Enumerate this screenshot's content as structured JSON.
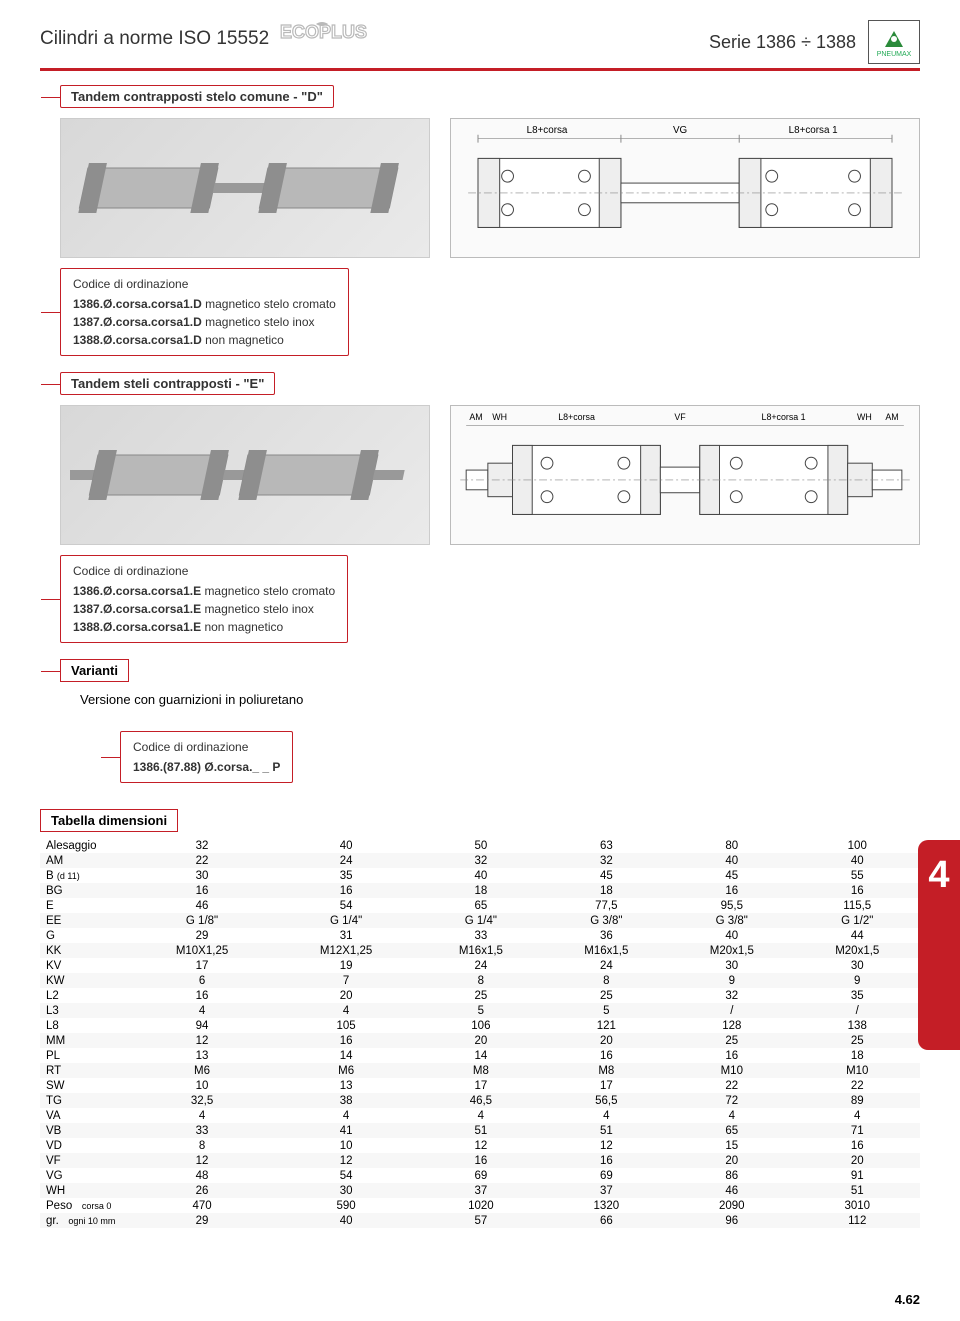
{
  "header": {
    "left_title": "Cilindri a norme ISO 15552",
    "brand_word": "ECOPLUS",
    "right_title": "Serie 1386 ÷ 1388",
    "logo_text": "PNEUMAX"
  },
  "section_d": {
    "title": "Tandem contrapposti stelo comune - \"D\"",
    "dim_labels": [
      "L8+corsa",
      "VG",
      "L8+corsa 1"
    ],
    "order_title": "Codice di ordinazione",
    "orders": [
      {
        "code": "1386.Ø.corsa.corsa1.D",
        "desc": "magnetico stelo cromato"
      },
      {
        "code": "1387.Ø.corsa.corsa1.D",
        "desc": "magnetico stelo inox"
      },
      {
        "code": "1388.Ø.corsa.corsa1.D",
        "desc": "non magnetico"
      }
    ]
  },
  "section_e": {
    "title": "Tandem steli contrapposti - \"E\"",
    "dim_labels": [
      "AM",
      "WH",
      "L8+corsa",
      "VF",
      "L8+corsa 1",
      "WH",
      "AM"
    ],
    "order_title": "Codice di ordinazione",
    "orders": [
      {
        "code": "1386.Ø.corsa.corsa1.E",
        "desc": "magnetico stelo cromato"
      },
      {
        "code": "1387.Ø.corsa.corsa1.E",
        "desc": "magnetico stelo inox"
      },
      {
        "code": "1388.Ø.corsa.corsa1.E",
        "desc": "non magnetico"
      }
    ]
  },
  "variants": {
    "label": "Varianti",
    "text": "Versione con guarnizioni in poliuretano",
    "order_title": "Codice di ordinazione",
    "order_code": "1386.(87.88) Ø.corsa._ _ P"
  },
  "side_tab": "4",
  "dim_table": {
    "title": "Tabella dimensioni",
    "columns": [
      "Alesaggio",
      "32",
      "40",
      "50",
      "63",
      "80",
      "100"
    ],
    "rows": [
      [
        "AM",
        "22",
        "24",
        "32",
        "32",
        "40",
        "40"
      ],
      [
        "B (d 11)",
        "30",
        "35",
        "40",
        "45",
        "45",
        "55"
      ],
      [
        "BG",
        "16",
        "16",
        "18",
        "18",
        "16",
        "16"
      ],
      [
        "E",
        "46",
        "54",
        "65",
        "77,5",
        "95,5",
        "115,5"
      ],
      [
        "EE",
        "G 1/8\"",
        "G 1/4\"",
        "G 1/4\"",
        "G 3/8\"",
        "G 3/8\"",
        "G 1/2\""
      ],
      [
        "G",
        "29",
        "31",
        "33",
        "36",
        "40",
        "44"
      ],
      [
        "KK",
        "M10X1,25",
        "M12X1,25",
        "M16x1,5",
        "M16x1,5",
        "M20x1,5",
        "M20x1,5"
      ],
      [
        "KV",
        "17",
        "19",
        "24",
        "24",
        "30",
        "30"
      ],
      [
        "KW",
        "6",
        "7",
        "8",
        "8",
        "9",
        "9"
      ],
      [
        "L2",
        "16",
        "20",
        "25",
        "25",
        "32",
        "35"
      ],
      [
        "L3",
        "4",
        "4",
        "5",
        "5",
        "/",
        "/"
      ],
      [
        "L8",
        "94",
        "105",
        "106",
        "121",
        "128",
        "138"
      ],
      [
        "MM",
        "12",
        "16",
        "20",
        "20",
        "25",
        "25"
      ],
      [
        "PL",
        "13",
        "14",
        "14",
        "16",
        "16",
        "18"
      ],
      [
        "RT",
        "M6",
        "M6",
        "M8",
        "M8",
        "M10",
        "M10"
      ],
      [
        "SW",
        "10",
        "13",
        "17",
        "17",
        "22",
        "22"
      ],
      [
        "TG",
        "32,5",
        "38",
        "46,5",
        "56,5",
        "72",
        "89"
      ],
      [
        "VA",
        "4",
        "4",
        "4",
        "4",
        "4",
        "4"
      ],
      [
        "VB",
        "33",
        "41",
        "51",
        "51",
        "65",
        "71"
      ],
      [
        "VD",
        "8",
        "10",
        "12",
        "12",
        "15",
        "16"
      ],
      [
        "VF",
        "12",
        "12",
        "16",
        "16",
        "20",
        "20"
      ],
      [
        "VG",
        "48",
        "54",
        "69",
        "69",
        "86",
        "91"
      ],
      [
        "WH",
        "26",
        "30",
        "37",
        "37",
        "46",
        "51"
      ]
    ],
    "peso_label": "Peso",
    "peso_sub1": "corsa 0",
    "peso_row1": [
      "470",
      "590",
      "1020",
      "1320",
      "2090",
      "3010"
    ],
    "gr_label": "gr.",
    "peso_sub2": "ogni 10 mm",
    "peso_row2": [
      "29",
      "40",
      "57",
      "66",
      "96",
      "112"
    ]
  },
  "footer": "4.62",
  "colors": {
    "brand_red": "#c41e26",
    "cylinder_grey": "#b8b8b8",
    "cylinder_dark": "#8e8e8e"
  }
}
